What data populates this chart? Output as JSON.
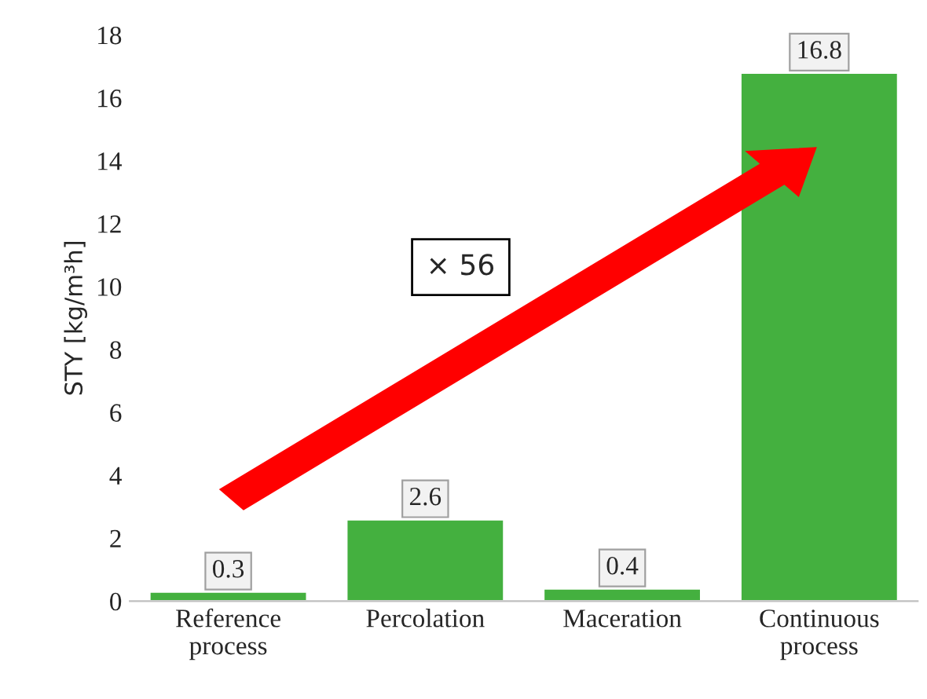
{
  "chart_data": {
    "type": "bar",
    "ylabel": "STY [kg/m³h]",
    "categories": [
      "Reference\nprocess",
      "Percolation",
      "Maceration",
      "Continuous\nprocess"
    ],
    "values": [
      0.3,
      2.6,
      0.4,
      16.8
    ],
    "color": "#44b03f",
    "ylim": [
      0,
      18
    ],
    "yticks": [
      0,
      2,
      4,
      6,
      8,
      10,
      12,
      14,
      16,
      18
    ],
    "grid": false,
    "data_labels": true,
    "annotations": [
      "× 56"
    ]
  }
}
